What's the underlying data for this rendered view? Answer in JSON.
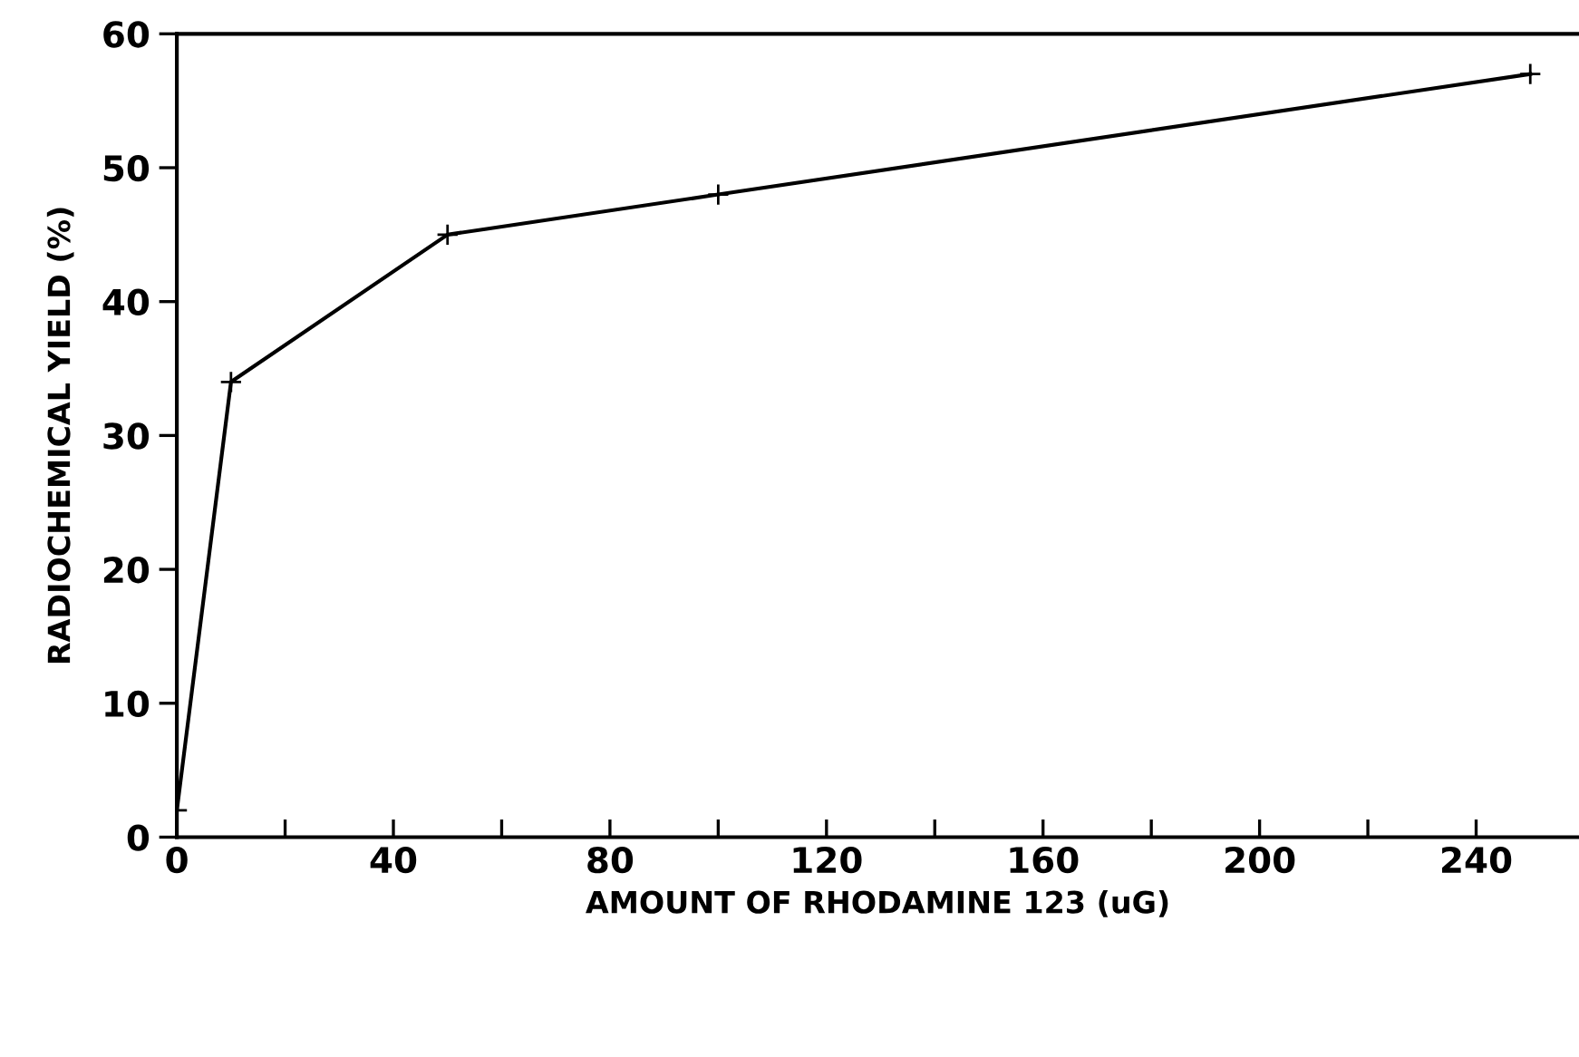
{
  "chart_data": {
    "type": "line",
    "xlabel": "AMOUNT OF RHODAMINE 123 (uG)",
    "ylabel": "RADIOCHEMICAL YIELD (%)",
    "x": [
      0,
      10,
      50,
      100,
      250
    ],
    "series": [
      {
        "color": "#000000",
        "values": [
          2,
          34,
          45,
          48,
          57
        ]
      }
    ],
    "marker": "cross",
    "line_style": "solid",
    "xlim": [
      0,
      259
    ],
    "ylim": [
      0,
      60
    ],
    "xticks": [
      0,
      {
        "value": 20,
        "label": null
      },
      40,
      {
        "value": 60,
        "label": null
      },
      80,
      {
        "value": 100,
        "label": null
      },
      120,
      {
        "value": 140,
        "label": null
      },
      160,
      {
        "value": 180,
        "label": null
      },
      200,
      {
        "value": 220,
        "label": null
      },
      240
    ],
    "yticks": [
      0,
      10,
      20,
      30,
      40,
      50,
      60
    ],
    "grid": false,
    "legend": false
  }
}
